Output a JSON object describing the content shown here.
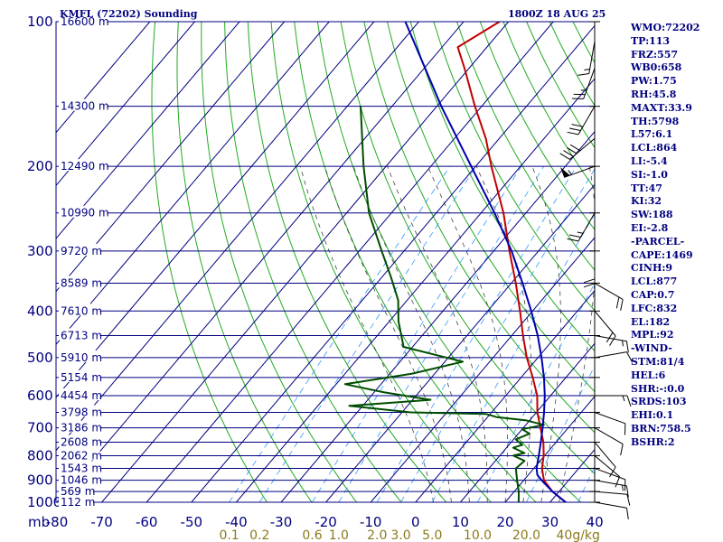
{
  "header": {
    "station": "KMFL (72202) Sounding",
    "time": "1800Z 18 AUG 25"
  },
  "stats": [
    "WMO:72202",
    "TP:113",
    "FRZ:557",
    "WB0:658",
    "PW:1.75",
    "RH:45.8",
    "MAXT:33.9",
    "TH:5798",
    "L57:6.1",
    "LCL:864",
    "LI:-5.4",
    "SI:-1.0",
    "TT:47",
    "KI:32",
    "SW:188",
    "EI:-2.8",
    "-PARCEL-",
    "CAPE:1469",
    "CINH:9",
    "LCL:877",
    "CAP:0.7",
    "LFC:832",
    "EL:182",
    "MPL:92",
    "-WIND-",
    "STM:81/4",
    "HEL:6",
    "SHR:-:0.0",
    "SRDS:103",
    "EHI:0.1",
    "BRN:758.5",
    "BSHR:2"
  ],
  "colors": {
    "frame": "#000080",
    "temperature": "#c00000",
    "dewpoint": "#004d00",
    "parcel": "#0000b0",
    "dry_adiabat": "#22aa22",
    "moist_adiabat": "#444444",
    "mixing_ratio": "#3399ff"
  },
  "chart_data": {
    "type": "line",
    "title": "KMFL (72202) Sounding",
    "subtitle": "1800Z 18 AUG 25",
    "y_scale": "log-pressure, inverted",
    "ylim": [
      1000,
      100
    ],
    "xlim": [
      -80,
      40
    ],
    "grid": true,
    "pressure_ticks": [
      100,
      200,
      300,
      400,
      500,
      600,
      700,
      800,
      900,
      1000
    ],
    "y_unit_label": "mb",
    "temperature_ticks": [
      -80,
      -70,
      -60,
      -50,
      -40,
      -30,
      -20,
      -10,
      0,
      10,
      20,
      30,
      40
    ],
    "height_labels": [
      {
        "p": 100,
        "text": "16600 m"
      },
      {
        "p": 150,
        "text": "14300 m"
      },
      {
        "p": 200,
        "text": "12490 m"
      },
      {
        "p": 250,
        "text": "10990 m"
      },
      {
        "p": 300,
        "text": "9720 m"
      },
      {
        "p": 350,
        "text": "8589 m"
      },
      {
        "p": 400,
        "text": "7610 m"
      },
      {
        "p": 450,
        "text": "6713 m"
      },
      {
        "p": 500,
        "text": "5910 m"
      },
      {
        "p": 550,
        "text": "5154 m"
      },
      {
        "p": 600,
        "text": "4454 m"
      },
      {
        "p": 650,
        "text": "3798 m"
      },
      {
        "p": 700,
        "text": "3186 m"
      },
      {
        "p": 750,
        "text": "2608 m"
      },
      {
        "p": 800,
        "text": "2062 m"
      },
      {
        "p": 850,
        "text": "1543 m"
      },
      {
        "p": 900,
        "text": "1046 m"
      },
      {
        "p": 950,
        "text": "569 m"
      },
      {
        "p": 1000,
        "text": "112 m"
      }
    ],
    "mixing_ratio_labels": [
      {
        "value": 0.1,
        "text": "0.1"
      },
      {
        "value": 0.2,
        "text": "0.2"
      },
      {
        "value": 0.6,
        "text": "0.6"
      },
      {
        "value": 1.0,
        "text": "1.0"
      },
      {
        "value": 2.0,
        "text": "2.0"
      },
      {
        "value": 3.0,
        "text": "3.0"
      },
      {
        "value": 5.0,
        "text": "5.0"
      },
      {
        "value": 10.0,
        "text": "10.0"
      },
      {
        "value": 20.0,
        "text": "20.0"
      },
      {
        "value": 40.0,
        "text": "40g/kg"
      }
    ],
    "series": [
      {
        "key": "temperature",
        "points": [
          {
            "p": 1000,
            "t": 33.5
          },
          {
            "p": 950,
            "t": 28.5
          },
          {
            "p": 900,
            "t": 24.5
          },
          {
            "p": 850,
            "t": 21.8
          },
          {
            "p": 800,
            "t": 19.8
          },
          {
            "p": 750,
            "t": 17.2
          },
          {
            "p": 700,
            "t": 13.8
          },
          {
            "p": 650,
            "t": 10.2
          },
          {
            "p": 600,
            "t": 7.0
          },
          {
            "p": 550,
            "t": 2.6
          },
          {
            "p": 500,
            "t": -2.5
          },
          {
            "p": 450,
            "t": -7.5
          },
          {
            "p": 400,
            "t": -12.8
          },
          {
            "p": 350,
            "t": -19.0
          },
          {
            "p": 300,
            "t": -26.5
          },
          {
            "p": 250,
            "t": -35.0
          },
          {
            "p": 200,
            "t": -46.5
          },
          {
            "p": 175,
            "t": -53.0
          },
          {
            "p": 150,
            "t": -61.5
          },
          {
            "p": 125,
            "t": -71.0
          },
          {
            "p": 113,
            "t": -76.5
          },
          {
            "p": 100,
            "t": -72.0
          }
        ]
      },
      {
        "key": "dewpoint",
        "points": [
          {
            "p": 1000,
            "t": 23.0
          },
          {
            "p": 950,
            "t": 21.0
          },
          {
            "p": 900,
            "t": 18.5
          },
          {
            "p": 870,
            "t": 17.0
          },
          {
            "p": 850,
            "t": 16.0
          },
          {
            "p": 820,
            "t": 16.5
          },
          {
            "p": 800,
            "t": 13.0
          },
          {
            "p": 790,
            "t": 15.0
          },
          {
            "p": 770,
            "t": 11.5
          },
          {
            "p": 760,
            "t": 13.0
          },
          {
            "p": 740,
            "t": 10.5
          },
          {
            "p": 720,
            "t": 12.5
          },
          {
            "p": 705,
            "t": 10.0
          },
          {
            "p": 690,
            "t": 14.0
          },
          {
            "p": 675,
            "t": 9.0
          },
          {
            "p": 665,
            "t": 2.0
          },
          {
            "p": 655,
            "t": -1.0
          },
          {
            "p": 650,
            "t": -18.0
          },
          {
            "p": 630,
            "t": -33.0
          },
          {
            "p": 612,
            "t": -16.0
          },
          {
            "p": 590,
            "t": -28.0
          },
          {
            "p": 568,
            "t": -38.0
          },
          {
            "p": 540,
            "t": -25.0
          },
          {
            "p": 510,
            "t": -16.0
          },
          {
            "p": 475,
            "t": -32.0
          },
          {
            "p": 420,
            "t": -38.0
          },
          {
            "p": 380,
            "t": -42.0
          },
          {
            "p": 340,
            "t": -48.0
          },
          {
            "p": 300,
            "t": -55.0
          },
          {
            "p": 250,
            "t": -65.0
          },
          {
            "p": 200,
            "t": -75.0
          },
          {
            "p": 150,
            "t": -87.0
          }
        ]
      },
      {
        "key": "parcel",
        "points": [
          {
            "p": 1000,
            "t": 33.5
          },
          {
            "p": 950,
            "t": 28.5
          },
          {
            "p": 900,
            "t": 24.0
          },
          {
            "p": 877,
            "t": 22.0
          },
          {
            "p": 850,
            "t": 20.6
          },
          {
            "p": 800,
            "t": 18.7
          },
          {
            "p": 750,
            "t": 16.6
          },
          {
            "p": 700,
            "t": 14.3
          },
          {
            "p": 650,
            "t": 11.7
          },
          {
            "p": 600,
            "t": 8.7
          },
          {
            "p": 550,
            "t": 5.1
          },
          {
            "p": 500,
            "t": 0.8
          },
          {
            "p": 450,
            "t": -4.2
          },
          {
            "p": 400,
            "t": -10.3
          },
          {
            "p": 350,
            "t": -17.5
          },
          {
            "p": 300,
            "t": -26.0
          },
          {
            "p": 250,
            "t": -37.0
          },
          {
            "p": 200,
            "t": -51.0
          },
          {
            "p": 150,
            "t": -69.0
          },
          {
            "p": 100,
            "t": -93.0
          }
        ]
      }
    ],
    "wind_barbs": [
      {
        "p": 1000,
        "dir": 100,
        "spd": 10
      },
      {
        "p": 950,
        "dir": 95,
        "spd": 10
      },
      {
        "p": 900,
        "dir": 100,
        "spd": 15
      },
      {
        "p": 850,
        "dir": 110,
        "spd": 10
      },
      {
        "p": 800,
        "dir": 130,
        "spd": 10
      },
      {
        "p": 750,
        "dir": 140,
        "spd": 10
      },
      {
        "p": 700,
        "dir": 120,
        "spd": 10
      },
      {
        "p": 650,
        "dir": 110,
        "spd": 10
      },
      {
        "p": 600,
        "dir": 90,
        "spd": 15
      },
      {
        "p": 500,
        "dir": 80,
        "spd": 10
      },
      {
        "p": 450,
        "dir": 100,
        "spd": 15
      },
      {
        "p": 400,
        "dir": 140,
        "spd": 20
      },
      {
        "p": 350,
        "dir": 120,
        "spd": 20
      },
      {
        "p": 300,
        "dir": 180,
        "spd": 20
      },
      {
        "p": 250,
        "dir": 210,
        "spd": 25
      },
      {
        "p": 200,
        "dir": 250,
        "spd": 55
      },
      {
        "p": 175,
        "dir": 230,
        "spd": 40
      },
      {
        "p": 150,
        "dir": 210,
        "spd": 30
      },
      {
        "p": 125,
        "dir": 200,
        "spd": 25
      },
      {
        "p": 110,
        "dir": 190,
        "spd": 15
      }
    ]
  }
}
